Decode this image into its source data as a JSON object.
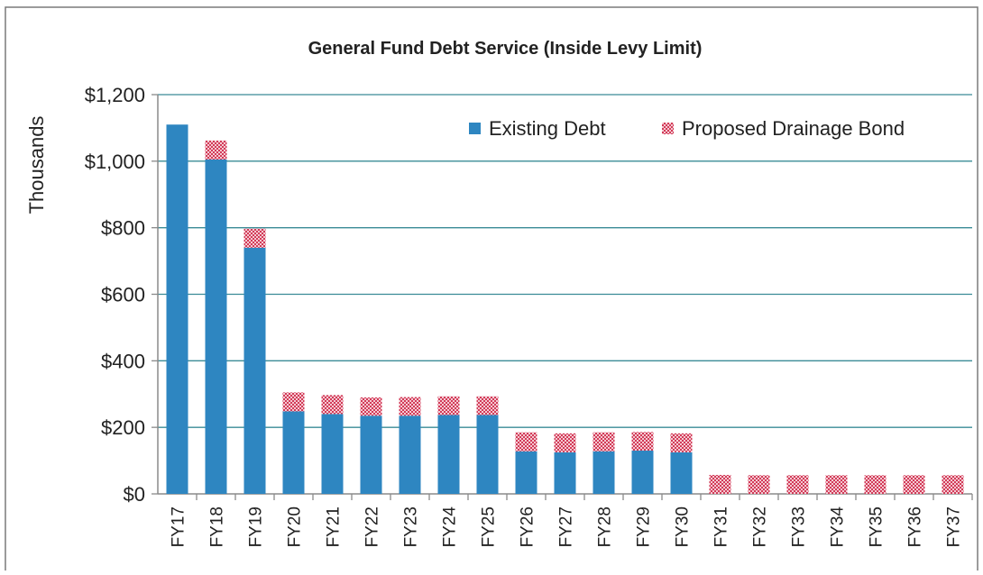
{
  "chart_data": {
    "type": "bar",
    "stacked": true,
    "title": "General Fund Debt Service (Inside Levy Limit)",
    "ylabel": "Thousands",
    "xlabel": "",
    "ylim": [
      0,
      1200
    ],
    "yticks": [
      0,
      200,
      400,
      600,
      800,
      1000,
      1200
    ],
    "ytick_labels": [
      "$0",
      "$200",
      "$400",
      "$600",
      "$800",
      "$1,000",
      "$1,200"
    ],
    "grid": true,
    "legend_position": "top-right",
    "categories": [
      "FY17",
      "FY18",
      "FY19",
      "FY20",
      "FY21",
      "FY22",
      "FY23",
      "FY24",
      "FY25",
      "FY26",
      "FY27",
      "FY28",
      "FY29",
      "FY30",
      "FY31",
      "FY32",
      "FY33",
      "FY34",
      "FY35",
      "FY36",
      "FY37"
    ],
    "series": [
      {
        "name": "Existing Debt",
        "color": "#2e86c1",
        "pattern": "solid",
        "values": [
          1110,
          1005,
          740,
          248,
          240,
          235,
          235,
          237,
          237,
          128,
          125,
          128,
          130,
          125,
          0,
          0,
          0,
          0,
          0,
          0,
          0
        ]
      },
      {
        "name": "Proposed Drainage Bond",
        "color": "#d7455f",
        "pattern": "checker",
        "values": [
          0,
          57,
          57,
          57,
          57,
          55,
          56,
          56,
          56,
          57,
          57,
          57,
          56,
          57,
          57,
          56,
          56,
          56,
          56,
          56,
          56
        ]
      }
    ]
  }
}
